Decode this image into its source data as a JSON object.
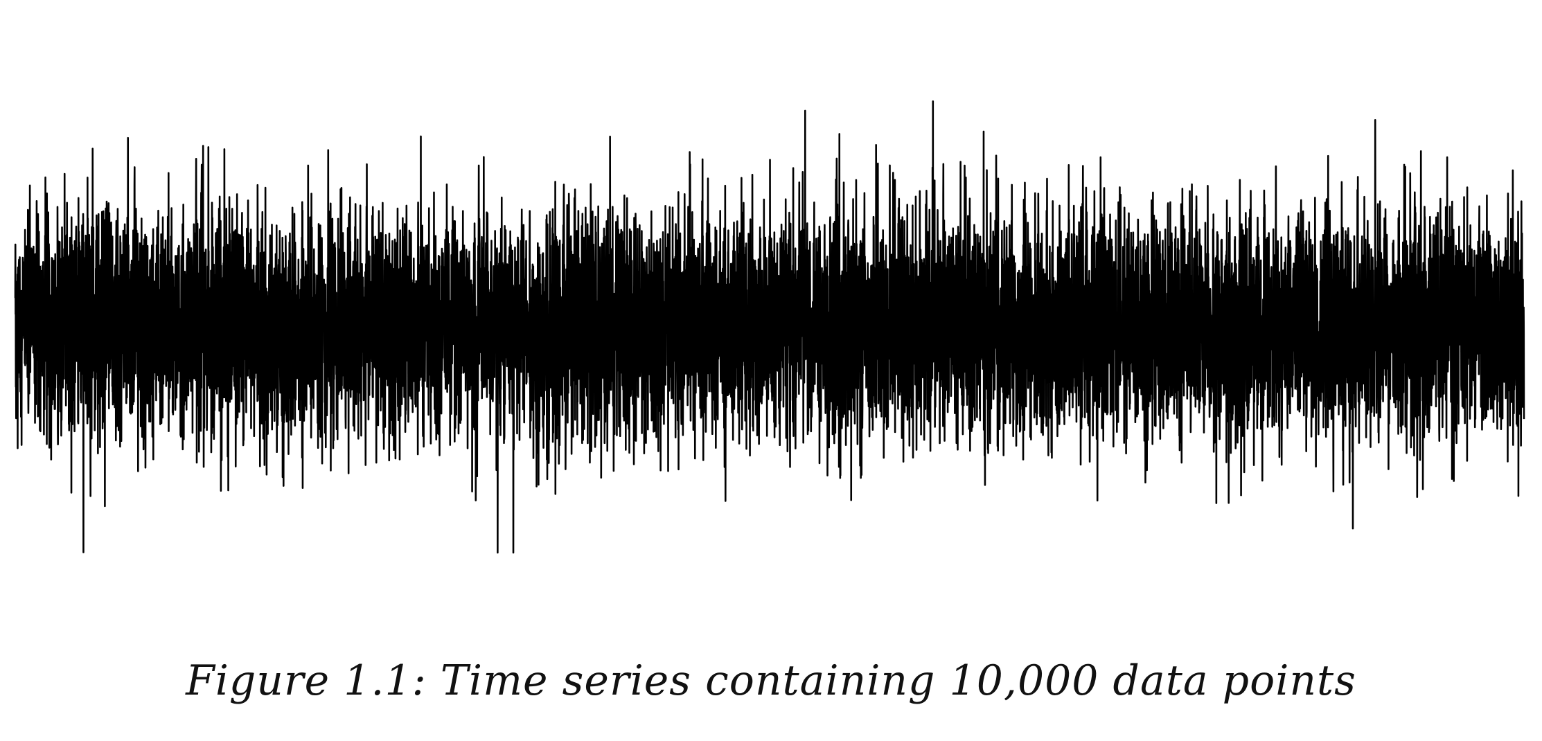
{
  "chart_data": {
    "type": "line",
    "title": "",
    "xlabel": "",
    "ylabel": "",
    "axes_visible": false,
    "grid": false,
    "legend": "none",
    "n_points": 10000,
    "series_color": "#000000",
    "x_range": [
      0,
      10000
    ],
    "ylim": [
      -5,
      5
    ],
    "mean": 0,
    "std": 1,
    "extrema": {
      "min": -4.0,
      "max": 4.2
    },
    "series": [
      {
        "name": "time series",
        "values_description": ""
      }
    ]
  },
  "caption": {
    "text": "Figure 1.1: Time series containing 10,000 data points"
  }
}
